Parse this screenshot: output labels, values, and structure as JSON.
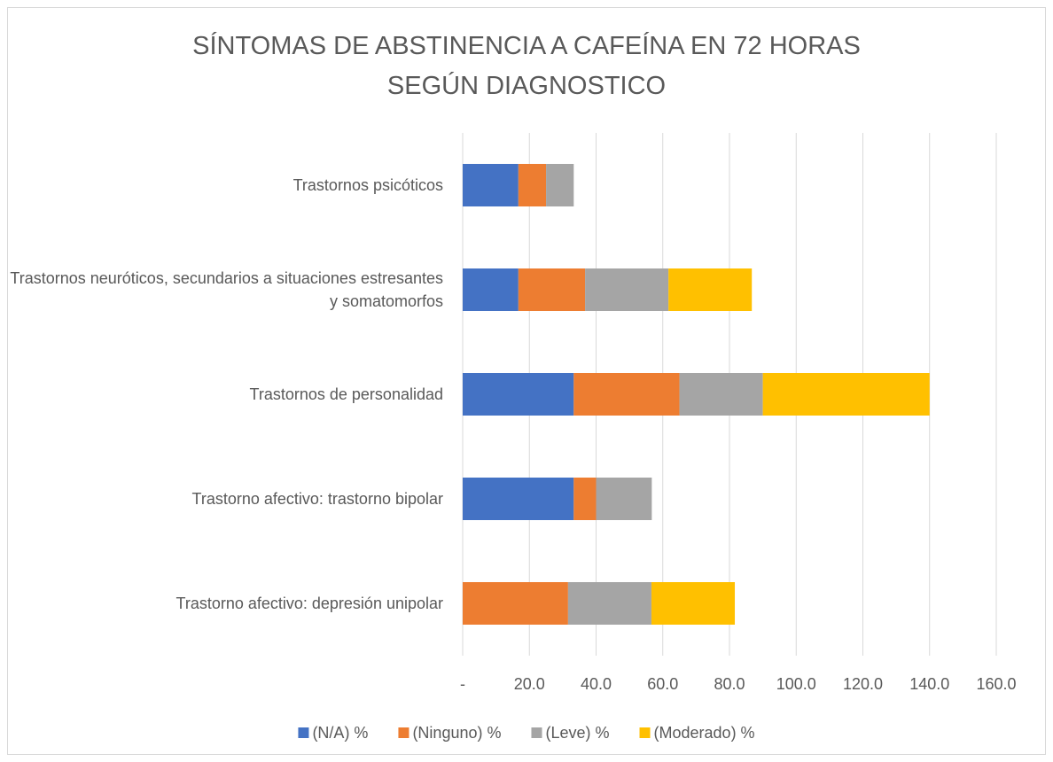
{
  "chart_data": {
    "type": "bar",
    "orientation": "horizontal",
    "stacked": true,
    "title": "SÍNTOMAS DE ABSTINENCIA A CAFEÍNA EN 72 HORAS SEGÚN DIAGNOSTICO",
    "categories": [
      "Trastornos psicóticos",
      "Trastornos neuróticos, secundarios a situaciones estresantes y somatomorfos",
      "Trastornos de personalidad",
      "Trastorno afectivo: trastorno bipolar",
      "Trastorno afectivo: depresión unipolar"
    ],
    "series": [
      {
        "name": "(N/A) %",
        "color": "#4472c4",
        "values": [
          16.7,
          16.7,
          33.3,
          33.3,
          0
        ]
      },
      {
        "name": "(Ninguno) %",
        "color": "#ed7d31",
        "values": [
          8.3,
          20,
          31.7,
          6.7,
          31.6
        ]
      },
      {
        "name": "(Leve) %",
        "color": "#a5a5a5",
        "values": [
          8.3,
          25,
          25,
          16.7,
          25
        ]
      },
      {
        "name": "(Moderado) %",
        "color": "#ffc000",
        "values": [
          0,
          25,
          50,
          0,
          25
        ]
      }
    ],
    "xlim": [
      0,
      160
    ],
    "xticks": [
      {
        "value": 0,
        "label": "-"
      },
      {
        "value": 20,
        "label": "20.0"
      },
      {
        "value": 40,
        "label": "40.0"
      },
      {
        "value": 60,
        "label": "60.0"
      },
      {
        "value": 80,
        "label": "80.0"
      },
      {
        "value": 100,
        "label": "100.0"
      },
      {
        "value": 120,
        "label": "120.0"
      },
      {
        "value": 140,
        "label": "140.0"
      },
      {
        "value": 160,
        "label": "160.0"
      }
    ],
    "grid": true,
    "legend": "bottom"
  }
}
